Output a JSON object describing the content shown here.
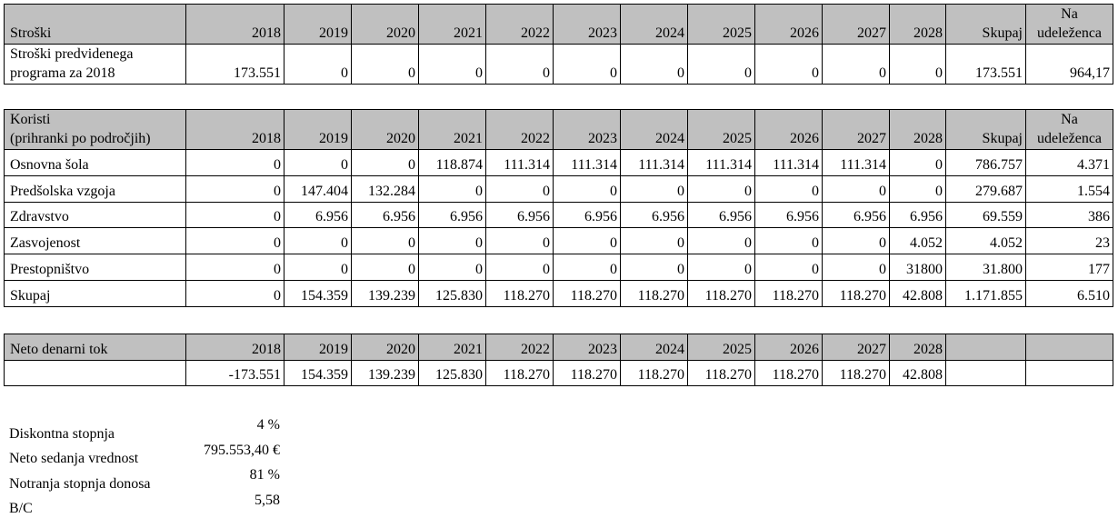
{
  "costs": {
    "header": [
      "Stroški",
      "2018",
      "2019",
      "2020",
      "2021",
      "2022",
      "2023",
      "2024",
      "2025",
      "2026",
      "2027",
      "2028",
      "Skupaj",
      "Na\nudeleženca"
    ],
    "rows": [
      [
        "Stroški predvidenega\nprograma za 2018",
        "173.551",
        "0",
        "0",
        "0",
        "0",
        "0",
        "0",
        "0",
        "0",
        "0",
        "0",
        "173.551",
        "964,17"
      ]
    ]
  },
  "benefits": {
    "header": [
      "Koristi\n(prihranki po področjih)",
      "2018",
      "2019",
      "2020",
      "2021",
      "2022",
      "2023",
      "2024",
      "2025",
      "2026",
      "2027",
      "2028",
      "Skupaj",
      "Na\nudeleženca"
    ],
    "rows": [
      [
        "Osnovna šola",
        "0",
        "0",
        "0",
        "118.874",
        "111.314",
        "111.314",
        "111.314",
        "111.314",
        "111.314",
        "111.314",
        "0",
        "786.757",
        "4.371"
      ],
      [
        "Predšolska vzgoja",
        "0",
        "147.404",
        "132.284",
        "0",
        "0",
        "0",
        "0",
        "0",
        "0",
        "0",
        "0",
        "279.687",
        "1.554"
      ],
      [
        "Zdravstvo",
        "0",
        "6.956",
        "6.956",
        "6.956",
        "6.956",
        "6.956",
        "6.956",
        "6.956",
        "6.956",
        "6.956",
        "6.956",
        "69.559",
        "386"
      ],
      [
        "Zasvojenost",
        "0",
        "0",
        "0",
        "0",
        "0",
        "0",
        "0",
        "0",
        "0",
        "0",
        "4.052",
        "4.052",
        "23"
      ],
      [
        "Prestopništvo",
        "0",
        "0",
        "0",
        "0",
        "0",
        "0",
        "0",
        "0",
        "0",
        "0",
        "31800",
        "31.800",
        "177"
      ],
      [
        "Skupaj",
        "0",
        "154.359",
        "139.239",
        "125.830",
        "118.270",
        "118.270",
        "118.270",
        "118.270",
        "118.270",
        "118.270",
        "42.808",
        "1.171.855",
        "6.510"
      ]
    ]
  },
  "net_cash_flow": {
    "header": [
      "Neto denarni tok",
      "2018",
      "2019",
      "2020",
      "2021",
      "2022",
      "2023",
      "2024",
      "2025",
      "2026",
      "2027",
      "2028"
    ],
    "values": [
      "-173.551",
      "154.359",
      "139.239",
      "125.830",
      "118.270",
      "118.270",
      "118.270",
      "118.270",
      "118.270",
      "118.270",
      "42.808"
    ]
  },
  "summary": [
    {
      "label": "Diskontna stopnja",
      "value": "4 %"
    },
    {
      "label": "Neto sedanja vrednost",
      "value": "795.553,40 €"
    },
    {
      "label": "Notranja stopnja donosa",
      "value": "81 %"
    },
    {
      "label": "B/C",
      "value": "5,58"
    }
  ]
}
